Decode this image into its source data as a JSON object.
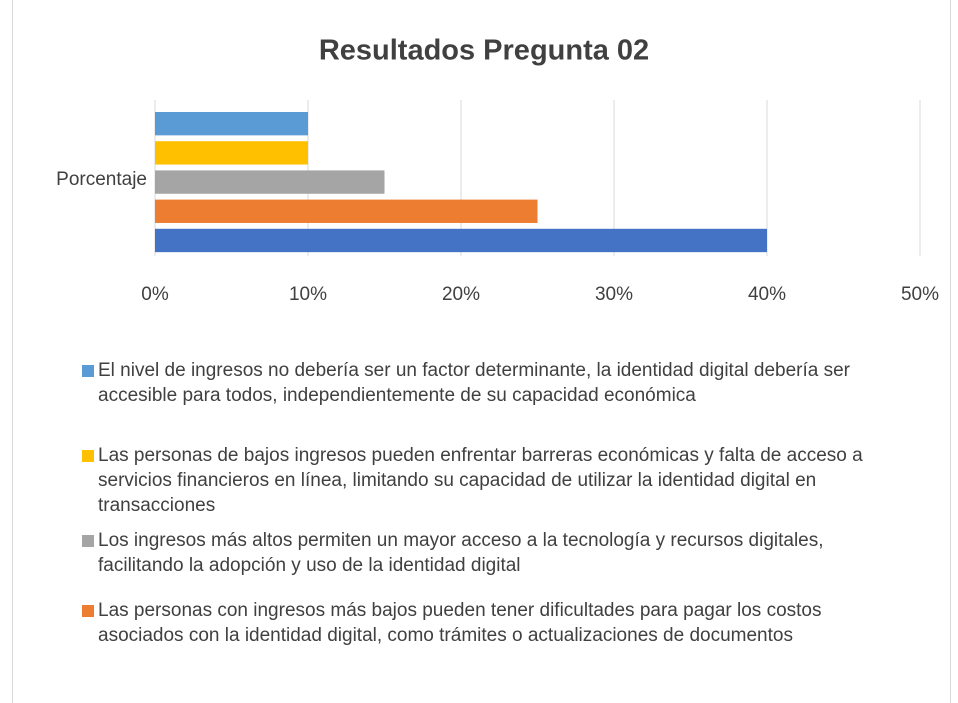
{
  "chart_data": {
    "type": "bar",
    "orientation": "horizontal",
    "title": "Resultados Pregunta 02",
    "categories": [
      "Porcentaje"
    ],
    "series": [
      {
        "name": "El nivel de ingresos no debería ser un factor determinante, la identidad digital debería ser accesible para todos, independientemente de su capacidad económica",
        "color": "#5b9bd5",
        "values": [
          10
        ]
      },
      {
        "name": "Las personas de bajos ingresos pueden enfrentar barreras económicas y falta de acceso a servicios financieros en línea, limitando su capacidad de utilizar la identidad digital en transacciones",
        "color": "#ffc000",
        "values": [
          10
        ]
      },
      {
        "name": "Los ingresos más altos permiten un mayor acceso a la tecnología y recursos digitales, facilitando la adopción y uso de la identidad digital",
        "color": "#a5a5a5",
        "values": [
          15
        ]
      },
      {
        "name": "Las personas con ingresos más bajos pueden tener dificultades para pagar los costos asociados con la identidad digital, como trámites o actualizaciones de documentos",
        "color": "#ed7d31",
        "values": [
          25
        ]
      },
      {
        "name": null,
        "color": "#4472c4",
        "values": [
          40
        ]
      }
    ],
    "xlim": [
      0,
      50
    ],
    "xticks": [
      {
        "value": 0,
        "label": "0%"
      },
      {
        "value": 10,
        "label": "10%"
      },
      {
        "value": 20,
        "label": "20%"
      },
      {
        "value": 30,
        "label": "30%"
      },
      {
        "value": 40,
        "label": "40%"
      },
      {
        "value": 50,
        "label": "50%"
      }
    ],
    "grid": true,
    "legend": "bottom"
  }
}
